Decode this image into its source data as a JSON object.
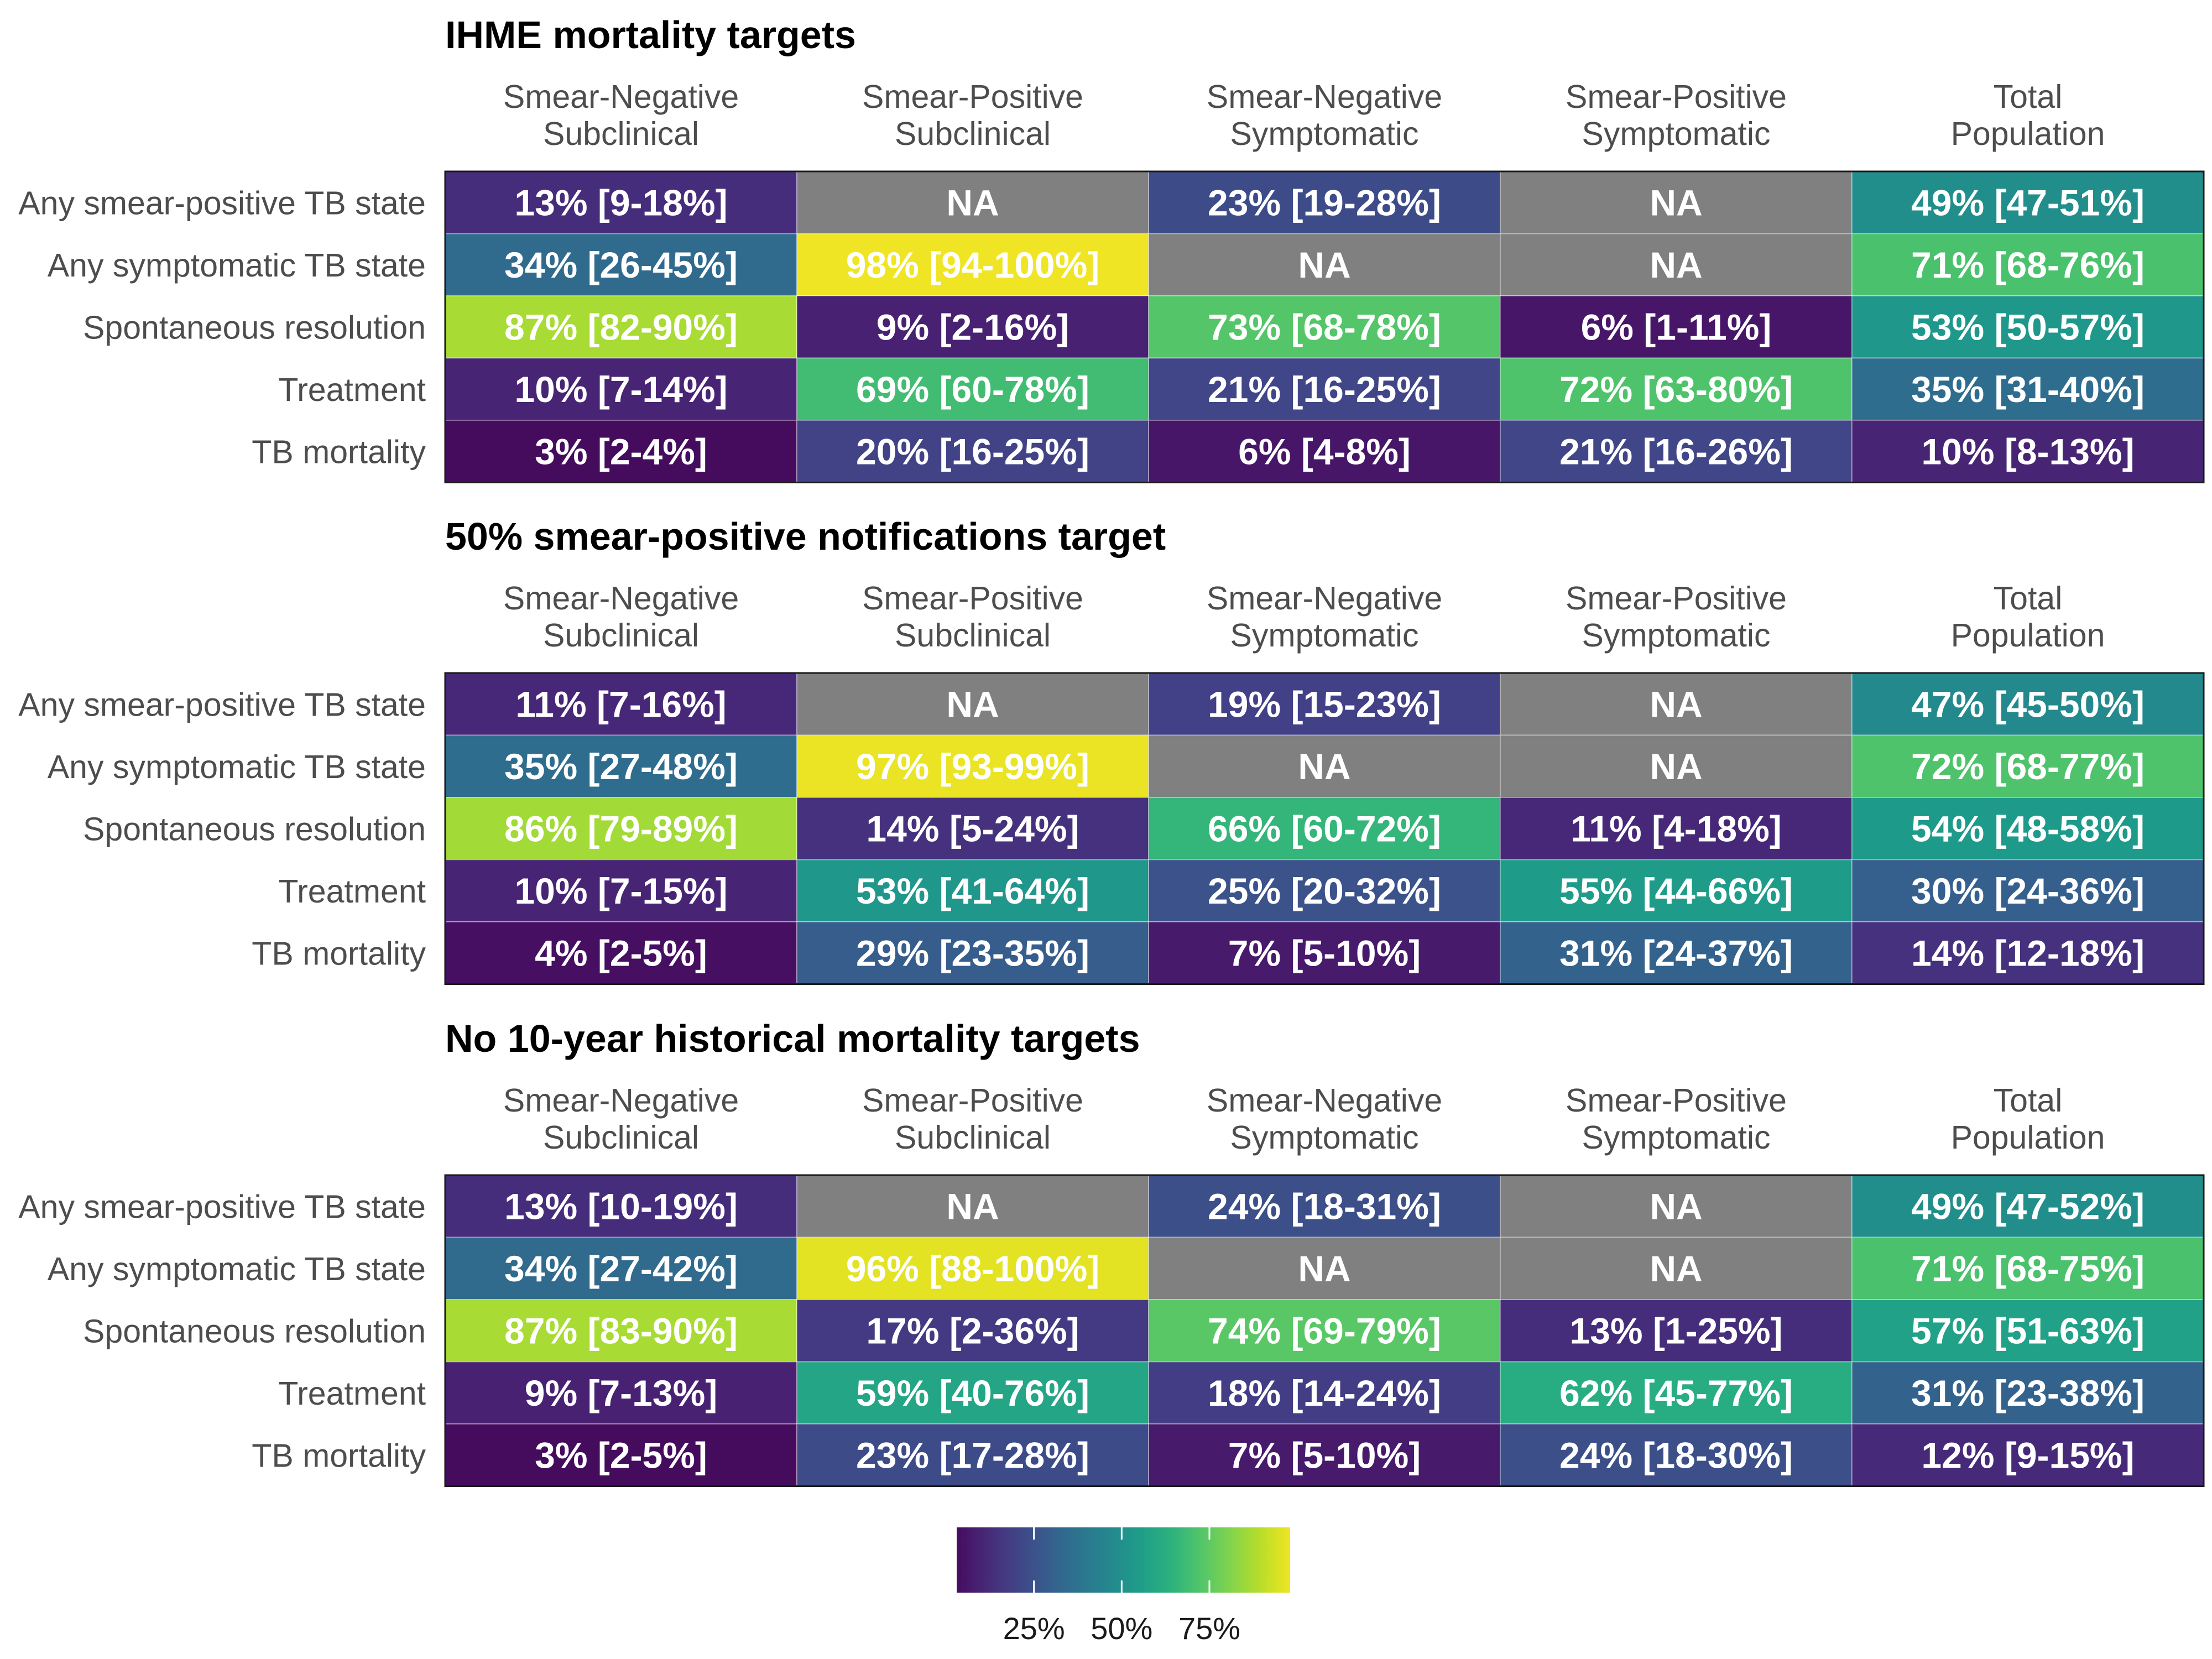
{
  "chart_data": {
    "type": "heatmap",
    "color_scale": {
      "name": "viridis",
      "domain_percent": [
        0,
        100
      ],
      "na_color": "#808080",
      "legend_ticks": [
        "25%",
        "50%",
        "75%"
      ],
      "legend_tick_values": [
        25,
        50,
        75
      ],
      "legend_min_percent": 3,
      "legend_max_percent": 98
    },
    "columns": [
      [
        "Smear-Negative",
        "Subclinical"
      ],
      [
        "Smear-Positive",
        "Subclinical"
      ],
      [
        "Smear-Negative",
        "Symptomatic"
      ],
      [
        "Smear-Positive",
        "Symptomatic"
      ],
      [
        "Total",
        "Population"
      ]
    ],
    "rows": [
      "Any smear-positive TB state",
      "Any symptomatic TB state",
      "Spontaneous resolution",
      "Treatment",
      "TB mortality"
    ],
    "panels": [
      {
        "title": "IHME mortality targets",
        "values": [
          [
            13,
            null,
            23,
            null,
            49
          ],
          [
            34,
            98,
            null,
            null,
            71
          ],
          [
            87,
            9,
            73,
            6,
            53
          ],
          [
            10,
            69,
            21,
            72,
            35
          ],
          [
            3,
            20,
            6,
            21,
            10
          ]
        ],
        "labels": [
          [
            "13% [9-18%]",
            "NA",
            "23% [19-28%]",
            "NA",
            "49% [47-51%]"
          ],
          [
            "34% [26-45%]",
            "98% [94-100%]",
            "NA",
            "NA",
            "71% [68-76%]"
          ],
          [
            "87% [82-90%]",
            "9% [2-16%]",
            "73% [68-78%]",
            "6% [1-11%]",
            "53% [50-57%]"
          ],
          [
            "10% [7-14%]",
            "69% [60-78%]",
            "21% [16-25%]",
            "72% [63-80%]",
            "35% [31-40%]"
          ],
          [
            "3% [2-4%]",
            "20% [16-25%]",
            "6% [4-8%]",
            "21% [16-26%]",
            "10% [8-13%]"
          ]
        ]
      },
      {
        "title": "50% smear-positive notifications target",
        "values": [
          [
            11,
            null,
            19,
            null,
            47
          ],
          [
            35,
            97,
            null,
            null,
            72
          ],
          [
            86,
            14,
            66,
            11,
            54
          ],
          [
            10,
            53,
            25,
            55,
            30
          ],
          [
            4,
            29,
            7,
            31,
            14
          ]
        ],
        "labels": [
          [
            "11% [7-16%]",
            "NA",
            "19% [15-23%]",
            "NA",
            "47% [45-50%]"
          ],
          [
            "35% [27-48%]",
            "97% [93-99%]",
            "NA",
            "NA",
            "72% [68-77%]"
          ],
          [
            "86% [79-89%]",
            "14% [5-24%]",
            "66% [60-72%]",
            "11% [4-18%]",
            "54% [48-58%]"
          ],
          [
            "10% [7-15%]",
            "53% [41-64%]",
            "25% [20-32%]",
            "55% [44-66%]",
            "30% [24-36%]"
          ],
          [
            "4% [2-5%]",
            "29% [23-35%]",
            "7% [5-10%]",
            "31% [24-37%]",
            "14% [12-18%]"
          ]
        ]
      },
      {
        "title": "No 10-year historical mortality targets",
        "values": [
          [
            13,
            null,
            24,
            null,
            49
          ],
          [
            34,
            96,
            null,
            null,
            71
          ],
          [
            87,
            17,
            74,
            13,
            57
          ],
          [
            9,
            59,
            18,
            62,
            31
          ],
          [
            3,
            23,
            7,
            24,
            12
          ]
        ],
        "labels": [
          [
            "13% [10-19%]",
            "NA",
            "24% [18-31%]",
            "NA",
            "49% [47-52%]"
          ],
          [
            "34% [27-42%]",
            "96% [88-100%]",
            "NA",
            "NA",
            "71% [68-75%]"
          ],
          [
            "87% [83-90%]",
            "17% [2-36%]",
            "74% [69-79%]",
            "13% [1-25%]",
            "57% [51-63%]"
          ],
          [
            "9% [7-13%]",
            "59% [40-76%]",
            "18% [14-24%]",
            "62% [45-77%]",
            "31% [23-38%]"
          ],
          [
            "3% [2-5%]",
            "23% [17-28%]",
            "7% [5-10%]",
            "24% [18-30%]",
            "12% [9-15%]"
          ]
        ]
      }
    ]
  }
}
